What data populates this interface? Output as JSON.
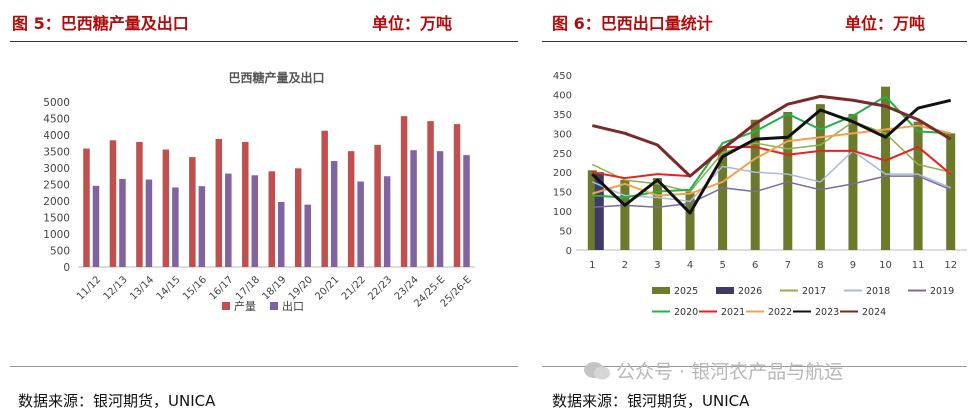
{
  "left": {
    "figure_title": "图 5：巴西糖产量及出口",
    "unit": "单位：万吨",
    "source": "数据来源：银河期货，UNICA"
  },
  "right": {
    "figure_title": "图 6：巴西出口量统计",
    "unit": "单位：万吨",
    "source": "数据来源：银河期货，UNICA"
  },
  "watermark": "公众号 · 银河农产品与航运",
  "colors": {
    "header_red": "#b10c0c",
    "bar_production": "#c0504d",
    "bar_export": "#8064a2"
  },
  "chart_data": [
    {
      "type": "bar",
      "title": "巴西糖产量及出口",
      "categories": [
        "11/12",
        "12/13",
        "13/14",
        "14/15",
        "15/16",
        "16/17",
        "17/18",
        "18/19",
        "19/20",
        "20/21",
        "21/22",
        "22/23",
        "23/24",
        "24/25-E",
        "25/26-E"
      ],
      "series": [
        {
          "name": "产量",
          "color": "#c0504d",
          "values": [
            3590,
            3840,
            3790,
            3560,
            3330,
            3880,
            3790,
            2900,
            2990,
            4130,
            3510,
            3700,
            4570,
            4420,
            4330
          ]
        },
        {
          "name": "出口",
          "color": "#8064a2",
          "values": [
            2460,
            2670,
            2650,
            2410,
            2450,
            2830,
            2780,
            1970,
            1890,
            3210,
            2590,
            2750,
            3540,
            3510,
            3390
          ]
        }
      ],
      "ylim": [
        0,
        5000
      ],
      "yticks": [
        0,
        500,
        1000,
        1500,
        2000,
        2500,
        3000,
        3500,
        4000,
        4500,
        5000
      ],
      "legend": "bottom",
      "grid": false
    },
    {
      "type": "line",
      "title": "",
      "x": [
        1,
        2,
        3,
        4,
        5,
        6,
        7,
        8,
        9,
        10,
        11,
        12
      ],
      "ylim": [
        0,
        450
      ],
      "yticks": [
        0,
        50,
        100,
        150,
        200,
        250,
        300,
        350,
        400,
        450
      ],
      "legend": "bottom",
      "grid": false,
      "bar_series": [
        {
          "name": "2025",
          "color": "#6b7a2b",
          "values": [
            205,
            180,
            185,
            150,
            265,
            335,
            355,
            375,
            350,
            420,
            330,
            300
          ]
        },
        {
          "name": "2026",
          "color": "#3f3a68",
          "values": [
            200,
            null,
            null,
            null,
            null,
            null,
            null,
            null,
            null,
            null,
            null,
            null
          ]
        }
      ],
      "series": [
        {
          "name": "2017",
          "color": "#8fb04a",
          "width": 1.5,
          "values": [
            220,
            180,
            170,
            150,
            250,
            275,
            260,
            270,
            330,
            300,
            220,
            200
          ]
        },
        {
          "name": "2018",
          "color": "#a6bcd8",
          "width": 1.5,
          "values": [
            175,
            140,
            135,
            125,
            215,
            200,
            195,
            175,
            255,
            195,
            195,
            160
          ]
        },
        {
          "name": "2019",
          "color": "#7d6ba0",
          "width": 1.5,
          "values": [
            110,
            115,
            110,
            120,
            160,
            150,
            175,
            155,
            170,
            190,
            190,
            155
          ]
        },
        {
          "name": "2020",
          "color": "#21b24a",
          "width": 2,
          "values": [
            140,
            135,
            150,
            155,
            275,
            305,
            350,
            310,
            345,
            395,
            305,
            300
          ]
        },
        {
          "name": "2021",
          "color": "#e8231e",
          "width": 2,
          "values": [
            200,
            185,
            195,
            190,
            265,
            265,
            245,
            255,
            255,
            230,
            265,
            195
          ]
        },
        {
          "name": "2022",
          "color": "#f5a04c",
          "width": 2,
          "values": [
            145,
            170,
            140,
            145,
            175,
            235,
            280,
            290,
            300,
            310,
            320,
            300
          ]
        },
        {
          "name": "2023",
          "color": "#111111",
          "width": 3,
          "values": [
            195,
            115,
            180,
            95,
            240,
            285,
            290,
            360,
            330,
            290,
            365,
            385
          ]
        },
        {
          "name": "2024",
          "color": "#7a2a2a",
          "width": 3,
          "values": [
            320,
            300,
            270,
            190,
            260,
            325,
            375,
            395,
            385,
            370,
            335,
            285
          ]
        }
      ]
    }
  ]
}
